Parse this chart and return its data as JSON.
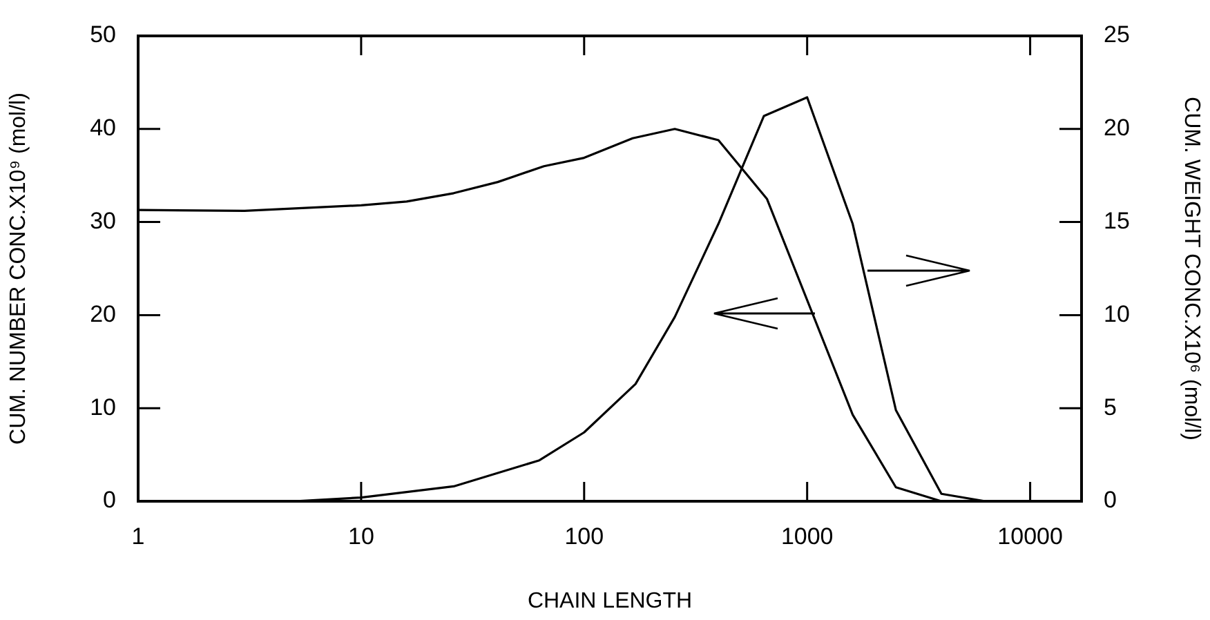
{
  "chart_data": {
    "type": "line",
    "xlabel": "CHAIN LENGTH",
    "ylabel": "CUM. NUMBER CONC.X10⁹ (mol/l)",
    "y2label": "CUM. WEIGHT CONC.X10⁶ (mol/l)",
    "log": "x",
    "marker": "none",
    "xlim": [
      1,
      17000
    ],
    "xticks": [
      1,
      10,
      100,
      1000,
      10000
    ],
    "ylim": [
      0,
      50
    ],
    "yticks": [
      0,
      10,
      20,
      30,
      40,
      50
    ],
    "y2lim": [
      0,
      25
    ],
    "y2ticks": [
      0,
      5,
      10,
      15,
      20,
      25
    ],
    "series": [
      {
        "color": "#000000",
        "x": [
          1,
          3,
          10,
          16,
          26,
          41,
          66,
          100,
          165,
          255,
          400,
          660,
          1600,
          2500,
          4000
        ],
        "values": [
          31.3,
          31.2,
          31.8,
          32.2,
          33.1,
          34.3,
          36,
          36.9,
          39,
          40,
          38.8,
          32.5,
          9.3,
          1.5,
          0
        ]
      },
      {
        "color": "#000000",
        "axis": "y2",
        "x": [
          1,
          5,
          10,
          26,
          63,
          100,
          170,
          255,
          400,
          640,
          1000,
          1600,
          2500,
          4000,
          6300
        ],
        "values": [
          0,
          0,
          0.2,
          0.8,
          2.2,
          3.7,
          6.3,
          9.9,
          14.9,
          20.7,
          21.7,
          14.9,
          4.9,
          0.4,
          0
        ]
      }
    ]
  }
}
